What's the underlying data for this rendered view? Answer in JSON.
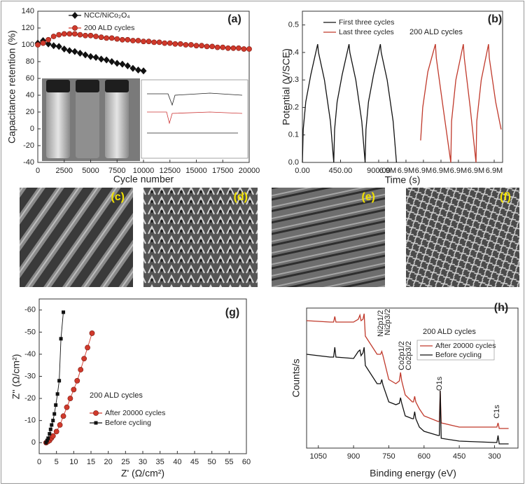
{
  "chart_data": [
    {
      "type": "line",
      "label": "(a)",
      "xlabel": "Cycle number",
      "ylabel": "Capacitance retention (%)",
      "xlim": [
        0,
        20000
      ],
      "ylim": [
        -40,
        140
      ],
      "xticks": [
        0,
        2500,
        5000,
        7500,
        10000,
        12500,
        15000,
        17500,
        20000
      ],
      "yticks": [
        -40,
        -20,
        0,
        20,
        40,
        60,
        80,
        100,
        120,
        140
      ],
      "series": [
        {
          "name": "NCC/NiCo₂O₄",
          "color": "#111111",
          "marker": "diamond",
          "x": [
            0,
            500,
            1000,
            1500,
            2000,
            2500,
            3000,
            3500,
            4000,
            4500,
            5000,
            5500,
            6000,
            6500,
            7000,
            7500,
            8000,
            8500,
            9000,
            9500,
            10000
          ],
          "values": [
            102,
            105,
            101,
            99,
            98,
            95,
            93,
            92,
            90,
            88,
            86,
            85,
            83,
            82,
            80,
            78,
            77,
            75,
            72,
            70,
            69
          ]
        },
        {
          "name": "200 ALD cycles",
          "color": "#d0392b",
          "marker": "circle",
          "x": [
            0,
            500,
            1000,
            1500,
            2000,
            2500,
            3000,
            3500,
            4000,
            4500,
            5000,
            5500,
            6000,
            6500,
            7000,
            7500,
            8000,
            8500,
            9000,
            9500,
            10000,
            10500,
            11000,
            11500,
            12000,
            12500,
            13000,
            13500,
            14000,
            14500,
            15000,
            15500,
            16000,
            16500,
            17000,
            17500,
            18000,
            18500,
            19000,
            19500,
            20000
          ],
          "values": [
            100,
            102,
            106,
            110,
            112,
            113,
            113,
            113,
            112,
            111,
            111,
            110,
            109,
            108,
            108,
            107,
            106,
            106,
            105,
            105,
            104,
            104,
            103,
            103,
            102,
            102,
            101,
            101,
            100,
            100,
            99,
            99,
            98,
            98,
            97,
            97,
            96,
            96,
            96,
            95,
            95
          ]
        }
      ]
    },
    {
      "type": "line",
      "label": "(b)",
      "xlabel": "Time (s)",
      "ylabel": "Potential (V/SCE)",
      "xlim": [
        0,
        2362
      ],
      "ylim": [
        0,
        0.55
      ],
      "xticks": [
        {
          "value": 0,
          "label": "0.00"
        },
        {
          "value": 450,
          "label": "450.00"
        },
        {
          "value": 900,
          "label": "900.00"
        },
        {
          "value": 1007,
          "label": "6.9M"
        },
        {
          "value": 1222,
          "label": "6.9M"
        },
        {
          "value": 1428,
          "label": "6.9M"
        },
        {
          "value": 1635,
          "label": "6.9M"
        },
        {
          "value": 1841,
          "label": "6.9M"
        },
        {
          "value": 2048,
          "label": "6.9M"
        },
        {
          "value": 2263,
          "label": "6.9M"
        }
      ],
      "yticks": [
        {
          "value": 0,
          "label": "0.0"
        },
        0.1,
        0.2,
        0.3,
        0.4,
        0.5
      ],
      "annotations": [
        "200 ALD cycles"
      ],
      "series": [
        {
          "name": "First three cycles",
          "color": "#111111",
          "x": [
            0,
            10,
            40,
            100,
            180,
            190,
            260,
            330,
            370,
            380,
            410,
            470,
            550,
            560,
            630,
            700,
            740,
            750,
            780,
            840,
            920,
            930,
            1000,
            1070,
            1110
          ],
          "values": [
            0,
            0.12,
            0.22,
            0.32,
            0.43,
            0.4,
            0.3,
            0.15,
            0,
            0.12,
            0.22,
            0.32,
            0.43,
            0.4,
            0.3,
            0.15,
            0,
            0.12,
            0.22,
            0.32,
            0.43,
            0.4,
            0.3,
            0.15,
            0
          ]
        },
        {
          "name": "Last three cycles",
          "color": "#c0392b",
          "x": [
            1395,
            1420,
            1480,
            1569,
            1580,
            1660,
            1751,
            1760,
            1810,
            1899,
            1910,
            1980,
            2048,
            2057,
            2110,
            2196,
            2205,
            2280,
            2345
          ],
          "values": [
            0.08,
            0.2,
            0.33,
            0.43,
            0.38,
            0.2,
            0,
            0.15,
            0.3,
            0.43,
            0.38,
            0.2,
            0,
            0.15,
            0.3,
            0.43,
            0.38,
            0.22,
            0.12
          ]
        }
      ]
    },
    {
      "type": "line",
      "label": "(g)",
      "xlabel": "Z' (Ω/cm²)",
      "ylabel": "Z'' (Ω/cm²)",
      "xlim": [
        0,
        60
      ],
      "ylim": [
        5,
        -65
      ],
      "xticks": [
        0,
        5,
        10,
        15,
        20,
        25,
        30,
        35,
        40,
        45,
        50,
        55,
        60
      ],
      "yticks": [
        0,
        -10,
        -20,
        -30,
        -40,
        -50,
        -60
      ],
      "annotations": [
        "200 ALD cycles"
      ],
      "series": [
        {
          "name": "After 20000 cycles",
          "color": "#d0392b",
          "marker": "circle",
          "x": [
            2,
            2.5,
            3,
            3.5,
            4,
            5,
            6,
            7,
            8,
            9,
            10,
            11,
            12,
            13,
            14,
            15.3
          ],
          "values": [
            0,
            -0.5,
            -1,
            -2,
            -3,
            -5,
            -8,
            -12,
            -16,
            -20,
            -24,
            -28,
            -33,
            -38,
            -43,
            -49.5
          ]
        },
        {
          "name": "Before cycling",
          "color": "#111111",
          "marker": "square",
          "x": [
            2,
            2.3,
            2.6,
            3,
            3.3,
            3.6,
            4,
            4.4,
            4.8,
            5.3,
            5.8,
            6.3,
            7
          ],
          "values": [
            0,
            -1,
            -2,
            -4,
            -6,
            -8,
            -10,
            -13,
            -17,
            -22,
            -28,
            -47,
            -59
          ]
        }
      ]
    },
    {
      "type": "line",
      "label": "(h)",
      "xlabel": "Binding energy (eV)",
      "ylabel": "Counts/s",
      "xlim": [
        1100,
        200
      ],
      "ylim": [
        0,
        100
      ],
      "xticks": [
        1050,
        900,
        750,
        600,
        450,
        300
      ],
      "annotations": [
        "Ni2p1/2",
        "Ni2p3/2",
        "Co2p1/2",
        "Co2p3/2",
        "O1s",
        "C1s",
        "200 ALD cycles"
      ],
      "series": [
        {
          "name": "After 20000 cycles",
          "color": "#c0392b",
          "x": [
            1100,
            1000,
            985,
            980,
            975,
            900,
            880,
            873,
            868,
            860,
            855,
            850,
            800,
            785,
            780,
            775,
            750,
            720,
            705,
            700,
            695,
            680,
            650,
            645,
            640,
            635,
            620,
            600,
            540,
            535,
            531,
            527,
            450,
            300,
            290,
            285,
            280,
            240
          ],
          "values": [
            91,
            90,
            90,
            94,
            90,
            90,
            92,
            95,
            91,
            92,
            96,
            80,
            67,
            67,
            69,
            66,
            49,
            46,
            48,
            54,
            48,
            38,
            33,
            33,
            37,
            33,
            28,
            23,
            19,
            19,
            41,
            18,
            15,
            15,
            15,
            18,
            14,
            14
          ]
        },
        {
          "name": "Before cycling",
          "color": "#111111",
          "x": [
            1100,
            1000,
            985,
            980,
            975,
            900,
            880,
            873,
            868,
            860,
            855,
            850,
            800,
            785,
            780,
            775,
            750,
            720,
            705,
            700,
            695,
            680,
            650,
            645,
            640,
            635,
            620,
            600,
            540,
            535,
            531,
            527,
            450,
            300,
            290,
            285,
            280,
            240
          ],
          "values": [
            67,
            65,
            65,
            72,
            65,
            64,
            69,
            70,
            66,
            68,
            72,
            59,
            46,
            46,
            49,
            45,
            33,
            31,
            32,
            36,
            32,
            23,
            21,
            21,
            26,
            21,
            15,
            12,
            9,
            9,
            41,
            7,
            5,
            4,
            4,
            9,
            3,
            3
          ]
        }
      ]
    }
  ],
  "sem_panels": [
    "(c)",
    "(d)",
    "(e)",
    "(f)"
  ]
}
